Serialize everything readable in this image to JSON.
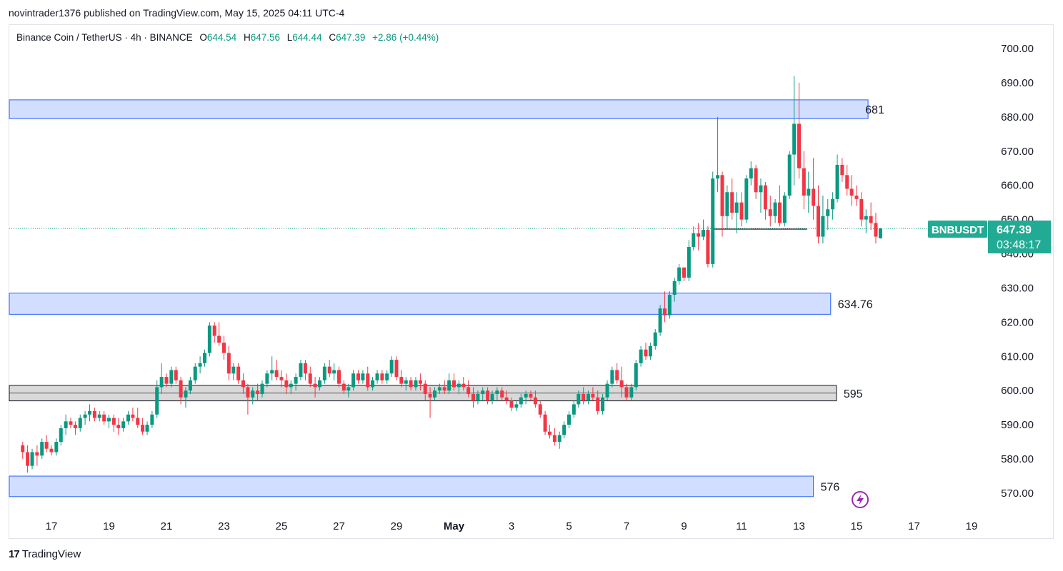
{
  "header": {
    "published": "novintrader1376 published on TradingView.com, May 15, 2025 04:11 UTC-4"
  },
  "legend": {
    "symbol": "Binance Coin / TetherUS · 4h · BINANCE",
    "o_label": "O",
    "o": "644.54",
    "h_label": "H",
    "h": "647.56",
    "l_label": "L",
    "l": "644.44",
    "c_label": "C",
    "c": "647.39",
    "change": "+2.86 (+0.44%)"
  },
  "price_tag": {
    "ticker": "BNBUSDT",
    "price": "647.39",
    "countdown": "03:48:17"
  },
  "footer": {
    "brand": "TradingView",
    "logo_text": "17"
  },
  "colors": {
    "up": "#089981",
    "down": "#f23645",
    "zone_fill": "#d1deff",
    "zone_border": "#2962ff",
    "gray_zone": "#d9d9d9",
    "tag_green": "#22ab94"
  },
  "chart_data": {
    "type": "candlestick",
    "ylim": [
      565,
      705
    ],
    "yticks": [
      570,
      580,
      590,
      600,
      610,
      620,
      630,
      640,
      650,
      660,
      670,
      680,
      690,
      700
    ],
    "ytick_labels": [
      "570.00",
      "580.00",
      "590.00",
      "600.00",
      "610.00",
      "620.00",
      "630.00",
      "640.00",
      "650.00",
      "660.00",
      "670.00",
      "680.00",
      "690.00",
      "700.00"
    ],
    "xticks": [
      {
        "label": "17",
        "t": 0
      },
      {
        "label": "19",
        "t": 2
      },
      {
        "label": "21",
        "t": 4
      },
      {
        "label": "23",
        "t": 6
      },
      {
        "label": "25",
        "t": 8
      },
      {
        "label": "27",
        "t": 10
      },
      {
        "label": "29",
        "t": 12
      },
      {
        "label": "May",
        "t": 14
      },
      {
        "label": "3",
        "t": 16
      },
      {
        "label": "5",
        "t": 18
      },
      {
        "label": "7",
        "t": 20
      },
      {
        "label": "9",
        "t": 22
      },
      {
        "label": "11",
        "t": 24
      },
      {
        "label": "13",
        "t": 26
      },
      {
        "label": "15",
        "t": 28
      },
      {
        "label": "17",
        "t": 30
      },
      {
        "label": "19",
        "t": 32
      }
    ],
    "zones": [
      {
        "label": "681",
        "low": 679.5,
        "high": 685.0,
        "t_end": 28.4,
        "style": "blue"
      },
      {
        "label": "634.76",
        "low": 622.3,
        "high": 628.5,
        "t_end": 27.1,
        "style": "blue"
      },
      {
        "label": "595",
        "low": 597.0,
        "high": 601.5,
        "t_end": 27.3,
        "style": "gray"
      },
      {
        "label": "576",
        "low": 569.0,
        "high": 575.0,
        "t_end": 26.5,
        "style": "blue"
      }
    ],
    "current_price": 647.39,
    "candles": [
      [
        -1.0,
        584,
        585,
        580,
        582
      ],
      [
        -0.83,
        582,
        584,
        576,
        578
      ],
      [
        -0.67,
        578,
        583,
        577,
        582
      ],
      [
        -0.5,
        582,
        584,
        578,
        581
      ],
      [
        -0.33,
        581,
        586,
        580,
        585
      ],
      [
        -0.17,
        585,
        587,
        582,
        583
      ],
      [
        0.0,
        583,
        584,
        581,
        582
      ],
      [
        0.17,
        582,
        586,
        581,
        585
      ],
      [
        0.33,
        585,
        590,
        584,
        589
      ],
      [
        0.5,
        589,
        593,
        587,
        591
      ],
      [
        0.67,
        591,
        592,
        589,
        590
      ],
      [
        0.83,
        590,
        591,
        587,
        589
      ],
      [
        1.0,
        589,
        593,
        588,
        592
      ],
      [
        1.17,
        592,
        594,
        590,
        593
      ],
      [
        1.33,
        593,
        596,
        591,
        594
      ],
      [
        1.5,
        594,
        595,
        591,
        592
      ],
      [
        1.67,
        592,
        594,
        591,
        593
      ],
      [
        1.83,
        593,
        594,
        590,
        591
      ],
      [
        2.0,
        591,
        593,
        589,
        592
      ],
      [
        2.17,
        592,
        593,
        588,
        590
      ],
      [
        2.33,
        590,
        592,
        587,
        589
      ],
      [
        2.5,
        589,
        592,
        588,
        591
      ],
      [
        2.67,
        591,
        594,
        590,
        593
      ],
      [
        2.83,
        593,
        595,
        591,
        592
      ],
      [
        3.0,
        592,
        595,
        589,
        590
      ],
      [
        3.17,
        590,
        592,
        587,
        588
      ],
      [
        3.33,
        588,
        591,
        587,
        590
      ],
      [
        3.5,
        590,
        594,
        589,
        593
      ],
      [
        3.67,
        593,
        603,
        592,
        601
      ],
      [
        3.83,
        601,
        608,
        599,
        604
      ],
      [
        4.0,
        604,
        605,
        601,
        602
      ],
      [
        4.17,
        602,
        607,
        601,
        606
      ],
      [
        4.33,
        606,
        607,
        602,
        603
      ],
      [
        4.5,
        603,
        604,
        596,
        598
      ],
      [
        4.67,
        598,
        601,
        595,
        600
      ],
      [
        4.83,
        600,
        604,
        599,
        603
      ],
      [
        5.0,
        603,
        608,
        602,
        607
      ],
      [
        5.17,
        607,
        610,
        605,
        608
      ],
      [
        5.33,
        608,
        612,
        607,
        611
      ],
      [
        5.5,
        611,
        620,
        610,
        619
      ],
      [
        5.67,
        619,
        620,
        614,
        616
      ],
      [
        5.83,
        616,
        620,
        613,
        614
      ],
      [
        6.0,
        614,
        616,
        609,
        611
      ],
      [
        6.17,
        611,
        613,
        603,
        605
      ],
      [
        6.33,
        605,
        608,
        603,
        607
      ],
      [
        6.5,
        607,
        608,
        602,
        603
      ],
      [
        6.67,
        603,
        605,
        599,
        601
      ],
      [
        6.83,
        601,
        602,
        593,
        598
      ],
      [
        7.0,
        598,
        601,
        596,
        600
      ],
      [
        7.17,
        600,
        602,
        597,
        599
      ],
      [
        7.33,
        599,
        603,
        598,
        602
      ],
      [
        7.5,
        602,
        606,
        601,
        605
      ],
      [
        7.67,
        605,
        610,
        603,
        606
      ],
      [
        7.83,
        606,
        609,
        603,
        604
      ],
      [
        8.0,
        604,
        606,
        601,
        603
      ],
      [
        8.17,
        603,
        605,
        599,
        601
      ],
      [
        8.33,
        601,
        603,
        599,
        602
      ],
      [
        8.5,
        602,
        605,
        600,
        604
      ],
      [
        8.67,
        604,
        609,
        603,
        608
      ],
      [
        8.83,
        608,
        609,
        603,
        605
      ],
      [
        9.0,
        605,
        607,
        601,
        602
      ],
      [
        9.17,
        602,
        604,
        598,
        601
      ],
      [
        9.33,
        601,
        604,
        600,
        603
      ],
      [
        9.5,
        603,
        608,
        602,
        607
      ],
      [
        9.67,
        607,
        609,
        604,
        605
      ],
      [
        9.83,
        605,
        608,
        603,
        606
      ],
      [
        10.0,
        606,
        607,
        601,
        602
      ],
      [
        10.17,
        602,
        603,
        599,
        600
      ],
      [
        10.33,
        600,
        602,
        598,
        601
      ],
      [
        10.5,
        601,
        606,
        600,
        605
      ],
      [
        10.67,
        605,
        606,
        602,
        603
      ],
      [
        10.83,
        603,
        606,
        602,
        605
      ],
      [
        11.0,
        605,
        607,
        600,
        601
      ],
      [
        11.17,
        601,
        604,
        600,
        603
      ],
      [
        11.33,
        603,
        606,
        602,
        605
      ],
      [
        11.5,
        605,
        606,
        602,
        603
      ],
      [
        11.67,
        603,
        606,
        602,
        605
      ],
      [
        11.83,
        605,
        610,
        604,
        609
      ],
      [
        12.0,
        609,
        610,
        603,
        604
      ],
      [
        12.17,
        604,
        606,
        601,
        602
      ],
      [
        12.33,
        602,
        604,
        600,
        603
      ],
      [
        12.5,
        603,
        604,
        600,
        601
      ],
      [
        12.67,
        601,
        604,
        600,
        603
      ],
      [
        12.83,
        603,
        605,
        600,
        602
      ],
      [
        13.0,
        602,
        603,
        597,
        599
      ],
      [
        13.17,
        599,
        601,
        592,
        598
      ],
      [
        13.33,
        598,
        601,
        597,
        600
      ],
      [
        13.5,
        600,
        602,
        599,
        601
      ],
      [
        13.67,
        601,
        603,
        599,
        600
      ],
      [
        13.83,
        600,
        605,
        599,
        603
      ],
      [
        14.0,
        603,
        605,
        600,
        601
      ],
      [
        14.17,
        601,
        603,
        599,
        602
      ],
      [
        14.33,
        602,
        604,
        600,
        601
      ],
      [
        14.5,
        601,
        603,
        598,
        599
      ],
      [
        14.67,
        599,
        601,
        595,
        597
      ],
      [
        14.83,
        597,
        600,
        596,
        599
      ],
      [
        15.0,
        599,
        601,
        597,
        600
      ],
      [
        15.17,
        600,
        601,
        596,
        597
      ],
      [
        15.33,
        597,
        600,
        596,
        599
      ],
      [
        15.5,
        599,
        601,
        597,
        600
      ],
      [
        15.67,
        600,
        601,
        597,
        598
      ],
      [
        15.83,
        598,
        600,
        596,
        597
      ],
      [
        16.0,
        597,
        598,
        594,
        595
      ],
      [
        16.17,
        595,
        597,
        594,
        596
      ],
      [
        16.33,
        596,
        599,
        595,
        598
      ],
      [
        16.5,
        598,
        600,
        596,
        599
      ],
      [
        16.67,
        599,
        600,
        597,
        598
      ],
      [
        16.83,
        598,
        600,
        595,
        596
      ],
      [
        17.0,
        596,
        597,
        592,
        593
      ],
      [
        17.17,
        593,
        594,
        587,
        588
      ],
      [
        17.33,
        588,
        590,
        586,
        587
      ],
      [
        17.5,
        587,
        589,
        584,
        585
      ],
      [
        17.67,
        585,
        588,
        583,
        587
      ],
      [
        17.83,
        587,
        591,
        586,
        590
      ],
      [
        18.0,
        590,
        594,
        589,
        593
      ],
      [
        18.17,
        593,
        597,
        592,
        596
      ],
      [
        18.33,
        596,
        600,
        595,
        599
      ],
      [
        18.5,
        599,
        601,
        596,
        597
      ],
      [
        18.67,
        597,
        600,
        596,
        599
      ],
      [
        18.83,
        599,
        601,
        597,
        598
      ],
      [
        19.0,
        598,
        600,
        593,
        594
      ],
      [
        19.17,
        594,
        599,
        593,
        598
      ],
      [
        19.33,
        598,
        603,
        597,
        602
      ],
      [
        19.5,
        602,
        607,
        601,
        606
      ],
      [
        19.67,
        606,
        608,
        602,
        603
      ],
      [
        19.83,
        603,
        607,
        598,
        601
      ],
      [
        20.0,
        601,
        602,
        597,
        598
      ],
      [
        20.17,
        598,
        602,
        597,
        601
      ],
      [
        20.33,
        601,
        609,
        600,
        608
      ],
      [
        20.5,
        608,
        613,
        607,
        612
      ],
      [
        20.67,
        612,
        614,
        609,
        610
      ],
      [
        20.83,
        610,
        614,
        609,
        613
      ],
      [
        21.0,
        613,
        618,
        612,
        617
      ],
      [
        21.17,
        617,
        625,
        616,
        624
      ],
      [
        21.33,
        624,
        629,
        620,
        622
      ],
      [
        21.5,
        622,
        629,
        621,
        628
      ],
      [
        21.67,
        628,
        633,
        626,
        632
      ],
      [
        21.83,
        632,
        637,
        631,
        636
      ],
      [
        22.0,
        636,
        636,
        632,
        633
      ],
      [
        22.17,
        633,
        644,
        632,
        642
      ],
      [
        22.33,
        642,
        648,
        641,
        646
      ],
      [
        22.5,
        646,
        649,
        641,
        645
      ],
      [
        22.67,
        645,
        650,
        644,
        647
      ],
      [
        22.83,
        647,
        648,
        636,
        637
      ],
      [
        23.0,
        637,
        664,
        636,
        662
      ],
      [
        23.17,
        662,
        680,
        658,
        663
      ],
      [
        23.33,
        663,
        664,
        645,
        651
      ],
      [
        23.5,
        651,
        660,
        647,
        658
      ],
      [
        23.67,
        658,
        662,
        650,
        652
      ],
      [
        23.83,
        652,
        658,
        646,
        655
      ],
      [
        24.0,
        655,
        658,
        648,
        650
      ],
      [
        24.17,
        650,
        663,
        649,
        662
      ],
      [
        24.33,
        662,
        667,
        660,
        665
      ],
      [
        24.5,
        665,
        666,
        656,
        658
      ],
      [
        24.67,
        658,
        662,
        652,
        660
      ],
      [
        24.83,
        660,
        661,
        650,
        653
      ],
      [
        25.0,
        653,
        657,
        648,
        651
      ],
      [
        25.17,
        651,
        656,
        649,
        655
      ],
      [
        25.33,
        655,
        660,
        648,
        649
      ],
      [
        25.5,
        649,
        658,
        648,
        657
      ],
      [
        25.67,
        657,
        670,
        656,
        669
      ],
      [
        25.83,
        669,
        692,
        660,
        678
      ],
      [
        26.0,
        678,
        690,
        662,
        665
      ],
      [
        26.17,
        665,
        670,
        653,
        657
      ],
      [
        26.33,
        657,
        664,
        652,
        659
      ],
      [
        26.5,
        659,
        668,
        650,
        654
      ],
      [
        26.67,
        654,
        660,
        643,
        645
      ],
      [
        26.83,
        645,
        657,
        643,
        651
      ],
      [
        27.0,
        651,
        656,
        647,
        653
      ],
      [
        27.17,
        653,
        658,
        650,
        656
      ],
      [
        27.33,
        656,
        669,
        655,
        666
      ],
      [
        27.5,
        666,
        668,
        661,
        663
      ],
      [
        27.67,
        663,
        666,
        657,
        659
      ],
      [
        27.83,
        659,
        663,
        654,
        657
      ],
      [
        28.0,
        657,
        660,
        654,
        656
      ],
      [
        28.17,
        656,
        658,
        648,
        650
      ],
      [
        28.33,
        650,
        653,
        646,
        651
      ],
      [
        28.5,
        651,
        655,
        647,
        649
      ],
      [
        28.67,
        649,
        652,
        643,
        645
      ],
      [
        28.83,
        644.54,
        647.56,
        644.44,
        647.39
      ]
    ]
  }
}
